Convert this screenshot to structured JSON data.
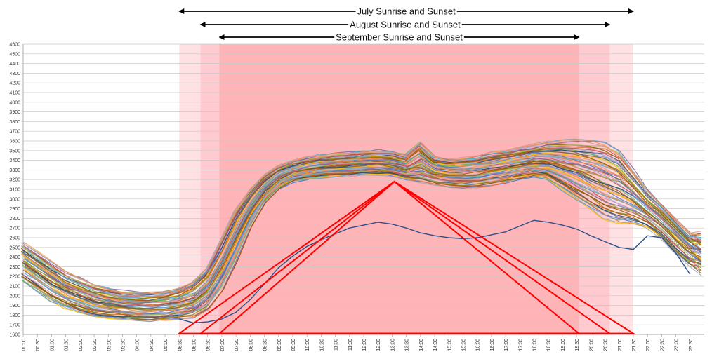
{
  "chart_data": {
    "type": "line",
    "title": "",
    "xlabel": "",
    "ylabel": "",
    "ylim": [
      1600,
      4600
    ],
    "y_ticks": [
      1600,
      1700,
      1800,
      1900,
      2000,
      2100,
      2200,
      2300,
      2400,
      2500,
      2600,
      2700,
      2800,
      2900,
      3000,
      3100,
      3200,
      3300,
      3400,
      3500,
      3600,
      3700,
      3800,
      3900,
      4000,
      4100,
      4200,
      4300,
      4400,
      4500,
      4600
    ],
    "x_categories": [
      "00:00",
      "00:30",
      "01:00",
      "01:30",
      "02:00",
      "02:30",
      "03:00",
      "03:30",
      "04:00",
      "04:30",
      "05:00",
      "05:30",
      "06:00",
      "06:30",
      "07:00",
      "07:30",
      "08:00",
      "08:30",
      "09:00",
      "09:30",
      "10:00",
      "10:30",
      "11:00",
      "11:30",
      "12:00",
      "12:30",
      "13:00",
      "13:30",
      "14:00",
      "14:30",
      "15:00",
      "15:30",
      "16:00",
      "16:30",
      "17:00",
      "17:30",
      "18:00",
      "18:30",
      "19:00",
      "19:30",
      "20:00",
      "20:30",
      "21:00",
      "21:30",
      "22:00",
      "22:30",
      "23:00",
      "23:30"
    ],
    "grid": "horizontal",
    "legend": "none",
    "daylight_bands": [
      {
        "label": "July Sunrise and Sunset",
        "start": "05:30",
        "end": "21:30",
        "color": "#ffe1e4"
      },
      {
        "label": "August Sunrise and Sunset",
        "start": "06:15",
        "end": "20:40",
        "color": "#ffcbd0"
      },
      {
        "label": "September Sunrise and Sunset",
        "start": "06:55",
        "end": "19:35",
        "color": "#ffb4b8"
      }
    ],
    "triangles": [
      {
        "base_start": "05:30",
        "base_end": "21:30",
        "base_y": 1610,
        "apex_x": "13:05",
        "apex_y": 3180
      },
      {
        "base_start": "06:15",
        "base_end": "20:40",
        "base_y": 1610,
        "apex_x": "13:05",
        "apex_y": 3180
      },
      {
        "base_start": "06:55",
        "base_end": "19:35",
        "base_y": 1610,
        "apex_x": "13:05",
        "apex_y": 3180
      }
    ],
    "series_envelope": {
      "upper": [
        2550,
        2450,
        2350,
        2250,
        2180,
        2120,
        2080,
        2050,
        2040,
        2040,
        2050,
        2080,
        2150,
        2300,
        2600,
        2900,
        3100,
        3250,
        3350,
        3400,
        3430,
        3450,
        3470,
        3480,
        3490,
        3500,
        3490,
        3460,
        3600,
        3450,
        3420,
        3430,
        3450,
        3480,
        3500,
        3530,
        3560,
        3590,
        3600,
        3610,
        3600,
        3580,
        3500,
        3300,
        3100,
        2950,
        2800,
        2650
      ],
      "lower": [
        2150,
        2050,
        1950,
        1880,
        1830,
        1790,
        1770,
        1750,
        1740,
        1740,
        1750,
        1760,
        1780,
        1860,
        2050,
        2350,
        2700,
        2950,
        3100,
        3170,
        3200,
        3220,
        3230,
        3240,
        3250,
        3250,
        3240,
        3200,
        3180,
        3150,
        3130,
        3120,
        3120,
        3140,
        3170,
        3200,
        3230,
        3200,
        3100,
        3000,
        2900,
        2800,
        2750,
        2750,
        2700,
        2600,
        2450,
        2320
      ]
    },
    "highlight_series": {
      "name": "",
      "color": "#2e4f8a",
      "values": [
        null,
        null,
        null,
        null,
        null,
        null,
        null,
        null,
        null,
        null,
        null,
        1760,
        1720,
        1730,
        1760,
        1830,
        1960,
        2120,
        2290,
        2410,
        2510,
        2580,
        2640,
        2700,
        2730,
        2760,
        2740,
        2700,
        2650,
        2620,
        2600,
        2590,
        2600,
        2630,
        2660,
        2720,
        2780,
        2760,
        2730,
        2690,
        2620,
        2560,
        2500,
        2480,
        2620,
        2600,
        2440,
        2220
      ]
    },
    "annotations": [
      {
        "text": "July Sunrise and Sunset",
        "start": "05:30",
        "end": "21:30"
      },
      {
        "text": "August Sunrise and Sunset",
        "start": "06:15",
        "end": "20:40"
      },
      {
        "text": "September Sunrise and Sunset",
        "start": "06:55",
        "end": "19:35"
      }
    ],
    "colors": [
      "#4472c4",
      "#ed7d31",
      "#a5a5a5",
      "#ffc000",
      "#5b9bd5",
      "#70ad47",
      "#9e480e",
      "#997300",
      "#636363",
      "#264478",
      "#c55a11",
      "#7f6000",
      "#e88aa0",
      "#8caadc",
      "#c0504d",
      "#9bbb59",
      "#8064a2",
      "#4bacc6",
      "#f79646",
      "#d99694"
    ]
  }
}
